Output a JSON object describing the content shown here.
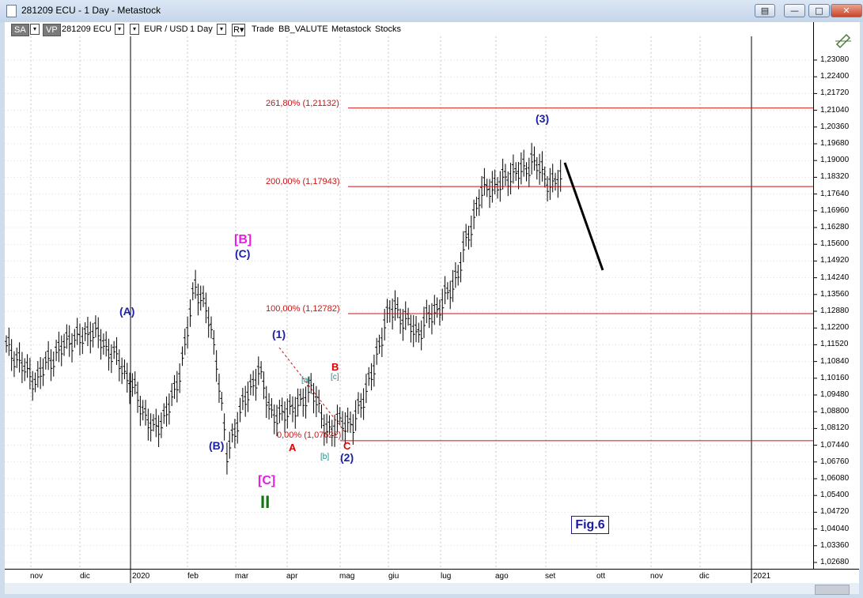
{
  "window": {
    "title": "281209 ECU - 1 Day - Metastock"
  },
  "toolbar": {
    "sa": "SA",
    "vp": "VP",
    "code": "281209 ECU",
    "pair": "EUR / USD",
    "period": "1 Day",
    "r": "R▾",
    "trade": "Trade",
    "indicator": "BB_VALUTE",
    "src1": "Metastock",
    "src2": "Stocks"
  },
  "colors": {
    "wave_blue": "#1c20a8",
    "wave_magenta": "#e61ce6",
    "wave_red": "#e00000",
    "wave_teal": "#208a8a",
    "wave_green": "#0a7a0a",
    "fib_line": "#c81414"
  },
  "price_axis": [
    "1,23080",
    "1,22400",
    "1,21720",
    "1,21040",
    "1,20360",
    "1,19680",
    "1,19000",
    "1,18320",
    "1,17640",
    "1,16960",
    "1,16280",
    "1,15600",
    "1,14920",
    "1,14240",
    "1,13560",
    "1,12880",
    "1,12200",
    "1,11520",
    "1,10840",
    "1,10160",
    "1,09480",
    "1,08800",
    "1,08120",
    "1,07440",
    "1,06760",
    "1,06080",
    "1,05400",
    "1,04720",
    "1,04040",
    "1,03360",
    "1,02680"
  ],
  "date_axis": [
    "nov",
    "dic",
    "2020",
    "feb",
    "mar",
    "apr",
    "mag",
    "giu",
    "lug",
    "ago",
    "set",
    "ott",
    "nov",
    "dic",
    "2021"
  ],
  "fib_levels": [
    {
      "label": "261,80% (1,21132)",
      "price": 1.21132
    },
    {
      "label": "200,00% (1,17943)",
      "price": 1.17943
    },
    {
      "label": "100,00% (1,12782)",
      "price": 1.12782
    },
    {
      "label": "0,00% (1,07622)",
      "price": 1.07622
    }
  ],
  "wave_labels": {
    "A_big": "(A)",
    "B_big": "(B)",
    "C_big": "(C)",
    "B_box": "[B]",
    "C_box": "[C]",
    "II": "II",
    "w1": "(1)",
    "w2": "(2)",
    "w3": "(3)",
    "a": "A",
    "b": "B",
    "c": "C",
    "a_small": "[a]",
    "b_small": "[b]",
    "c_small": "[c]"
  },
  "figure_label": "Fig.6",
  "chart_data": {
    "type": "bar",
    "title": "",
    "series": "EUR/USD daily OHLC",
    "ylim": [
      1.0235,
      1.2375
    ],
    "x": [
      "nov",
      "dic",
      "2020",
      "feb",
      "mar",
      "apr",
      "mag",
      "giu",
      "lug",
      "ago",
      "set",
      "ott",
      "nov",
      "dic",
      "2021"
    ],
    "closes": [
      1.114,
      1.11,
      1.1035,
      1.101,
      1.109,
      1.112,
      1.118,
      1.117,
      1.1215,
      1.117,
      1.112,
      1.1065,
      1.098,
      1.089,
      1.08,
      1.086,
      1.095,
      1.115,
      1.14,
      1.13,
      1.11,
      1.07,
      1.085,
      1.095,
      1.105,
      1.09,
      1.085,
      1.09,
      1.09,
      1.099,
      1.085,
      1.08,
      1.085,
      1.082,
      1.095,
      1.105,
      1.125,
      1.13,
      1.125,
      1.12,
      1.125,
      1.13,
      1.135,
      1.145,
      1.16,
      1.175,
      1.18,
      1.18,
      1.185,
      1.185,
      1.19,
      1.185,
      1.18,
      1.183
    ]
  }
}
